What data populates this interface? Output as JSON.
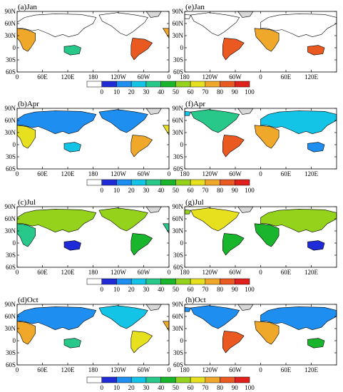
{
  "colorbar": {
    "labels": [
      "0",
      "10",
      "20",
      "30",
      "40",
      "50",
      "60",
      "70",
      "80",
      "90",
      "100"
    ],
    "colors": [
      "#ffffff",
      "#1f2bd6",
      "#1e8ef0",
      "#14c4e6",
      "#27c88a",
      "#19b52c",
      "#95d21b",
      "#e6e01f",
      "#f0a82a",
      "#ea5a20",
      "#e0201a"
    ]
  },
  "lat_ticks": [
    "90N",
    "60N",
    "30N",
    "0",
    "30S",
    "60S"
  ],
  "panels": [
    {
      "title": "(a)Jan",
      "lon_ticks": [
        "0",
        "60E",
        "120E",
        "180",
        "120W",
        "60W",
        "0"
      ]
    },
    {
      "title": "(e)Jan",
      "lon_ticks": [
        "180",
        "120W",
        "60W",
        "0",
        "60E",
        "120E"
      ]
    },
    {
      "title": "(b)Apr",
      "lon_ticks": [
        "0",
        "60E",
        "120E",
        "180",
        "120W",
        "60W",
        "0"
      ]
    },
    {
      "title": "(f)Apr",
      "lon_ticks": [
        "180",
        "120W",
        "60W",
        "0",
        "60E",
        "120E"
      ]
    },
    {
      "title": "(c)Jul",
      "lon_ticks": [
        "0",
        "60E",
        "120E",
        "180",
        "120W",
        "60W",
        "0"
      ]
    },
    {
      "title": "(g)Jul",
      "lon_ticks": [
        "180",
        "120W",
        "60W",
        "0",
        "60E",
        "120E"
      ]
    },
    {
      "title": "(d)Oct",
      "lon_ticks": [
        "0",
        "60E",
        "120E",
        "180",
        "120W",
        "60W",
        "0"
      ]
    },
    {
      "title": "(h)Oct",
      "lon_ticks": [
        "180",
        "120W",
        "60W",
        "0",
        "60E",
        "120E"
      ]
    }
  ]
}
